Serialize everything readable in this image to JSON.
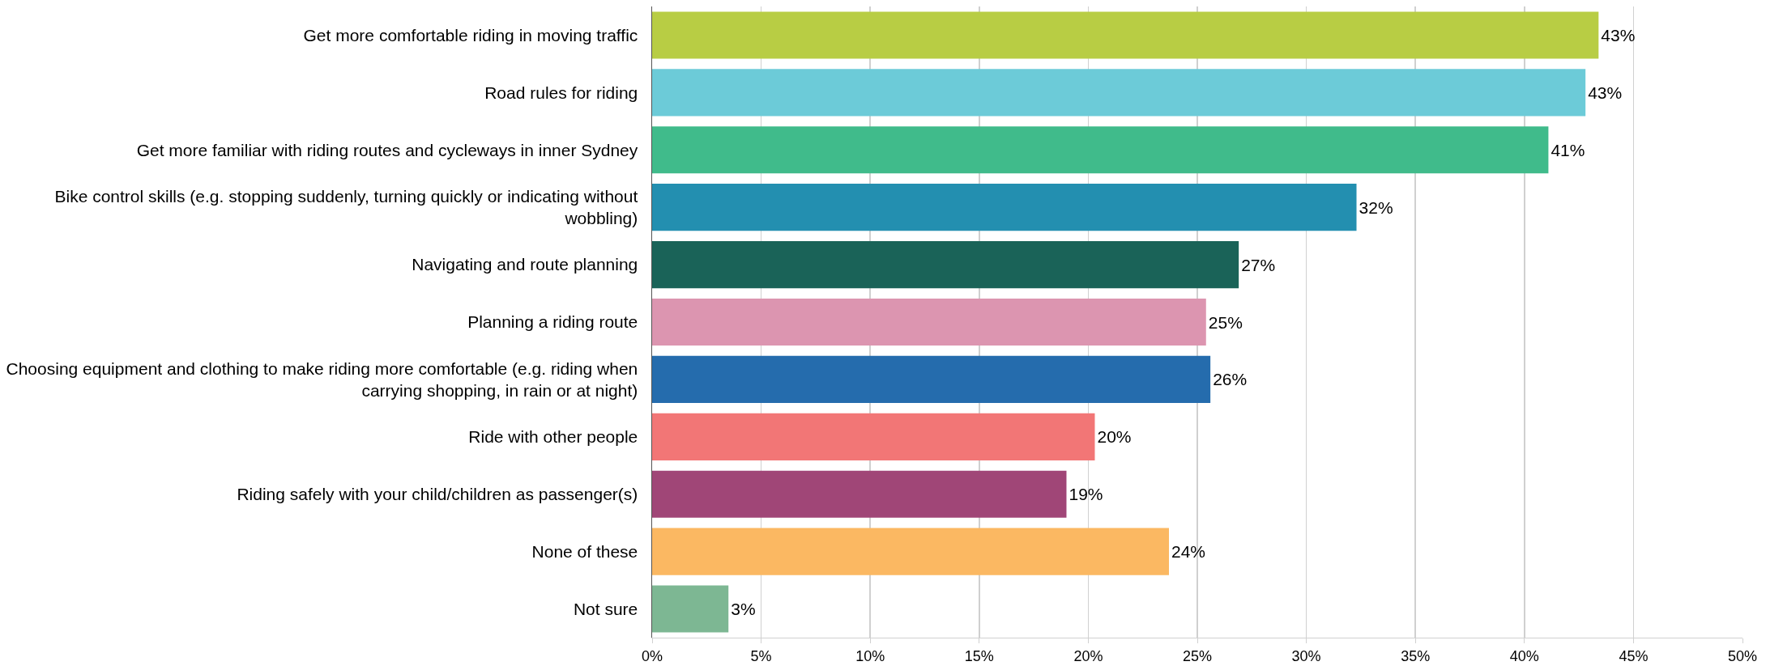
{
  "chart_data": {
    "type": "bar",
    "orientation": "horizontal",
    "categories": [
      "Get more comfortable riding in moving traffic",
      "Road rules for riding",
      "Get more familiar with riding routes and cycleways in inner Sydney",
      "Bike control skills (e.g. stopping suddenly, turning quickly or indicating without wobbling)",
      "Navigating and route planning",
      "Planning a riding route",
      "Choosing equipment and clothing to make riding more comfortable (e.g. riding when carrying shopping, in rain or at night)",
      "Ride with other people",
      "Riding safely with your child/children as passenger(s)",
      "None of these",
      "Not sure"
    ],
    "values": [
      43.4,
      42.8,
      41.1,
      32.3,
      26.9,
      25.4,
      25.6,
      20.3,
      19.0,
      23.7,
      3.5
    ],
    "value_labels": [
      "43%",
      "43%",
      "41%",
      "32%",
      "27%",
      "25%",
      "26%",
      "20%",
      "19%",
      "24%",
      "3%"
    ],
    "colors": [
      "#b8cd44",
      "#6ccbd8",
      "#40bb8b",
      "#238fb0",
      "#1a6358",
      "#dc95b0",
      "#256cad",
      "#f27676",
      "#a04677",
      "#fbb862",
      "#7db793"
    ],
    "xlim": [
      0,
      50
    ],
    "xticks": [
      {
        "value": 0,
        "label": "0%"
      },
      {
        "value": 5,
        "label": "5%"
      },
      {
        "value": 10,
        "label": "10%"
      },
      {
        "value": 15,
        "label": "15%"
      },
      {
        "value": 20,
        "label": "20%"
      },
      {
        "value": 25,
        "label": "25%"
      },
      {
        "value": 30,
        "label": "30%"
      },
      {
        "value": 35,
        "label": "35%"
      },
      {
        "value": 40,
        "label": "40%"
      },
      {
        "value": 45,
        "label": "45%"
      },
      {
        "value": 50,
        "label": "50%"
      }
    ],
    "grid": "x",
    "legend": false
  }
}
